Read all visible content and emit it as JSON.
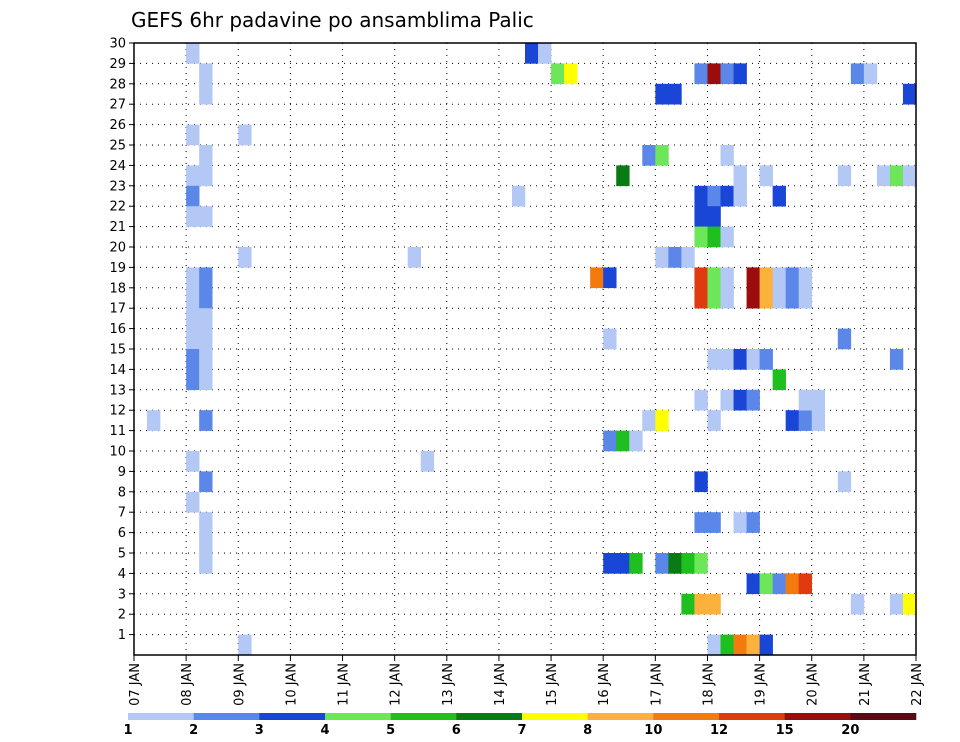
{
  "chart_data": {
    "type": "heatmap",
    "title": "GEFS 6hr padavine po ansamblima Palic",
    "xlabel": "",
    "ylabel": "",
    "x_ticks": [
      "07 JAN",
      "08 JAN",
      "09 JAN",
      "10 JAN",
      "11 JAN",
      "12 JAN",
      "13 JAN",
      "14 JAN",
      "15 JAN",
      "16 JAN",
      "17 JAN",
      "18 JAN",
      "19 JAN",
      "20 JAN",
      "21 JAN",
      "22 JAN"
    ],
    "y_ticks": [
      1,
      2,
      3,
      4,
      5,
      6,
      7,
      8,
      9,
      10,
      11,
      12,
      13,
      14,
      15,
      16,
      17,
      18,
      19,
      20,
      21,
      22,
      23,
      24,
      25,
      26,
      27,
      28,
      29,
      30
    ],
    "xlim": [
      0,
      60
    ],
    "ylim": [
      0,
      30
    ],
    "x_unit": "6-hour step from 07 JAN 00Z",
    "grid": true,
    "colorbar": {
      "labels": [
        "1",
        "2",
        "3",
        "4",
        "5",
        "6",
        "7",
        "8",
        "10",
        "12",
        "15",
        "20"
      ],
      "colors": [
        "#b3c8f5",
        "#5a87e8",
        "#1a46d8",
        "#6ee65a",
        "#1fbf1f",
        "#0a7a14",
        "#ffff00",
        "#fbb13b",
        "#f47a0e",
        "#e03a10",
        "#9b0d0d",
        "#5a0a14"
      ]
    },
    "cells": [
      {
        "x": 4,
        "y": 29,
        "level": 1
      },
      {
        "x": 5,
        "y": 27,
        "level": 1
      },
      {
        "x": 5,
        "y": 28,
        "level": 1
      },
      {
        "x": 4,
        "y": 25,
        "level": 1
      },
      {
        "x": 5,
        "y": 24,
        "level": 1
      },
      {
        "x": 4,
        "y": 23,
        "level": 1
      },
      {
        "x": 5,
        "y": 23,
        "level": 1
      },
      {
        "x": 4,
        "y": 22,
        "level": 2
      },
      {
        "x": 4,
        "y": 21,
        "level": 1
      },
      {
        "x": 5,
        "y": 21,
        "level": 1
      },
      {
        "x": 8,
        "y": 25,
        "level": 1
      },
      {
        "x": 4,
        "y": 18,
        "level": 1
      },
      {
        "x": 5,
        "y": 18,
        "level": 2
      },
      {
        "x": 4,
        "y": 17,
        "level": 1
      },
      {
        "x": 5,
        "y": 17,
        "level": 2
      },
      {
        "x": 4,
        "y": 16,
        "level": 1
      },
      {
        "x": 5,
        "y": 16,
        "level": 1
      },
      {
        "x": 4,
        "y": 15,
        "level": 1
      },
      {
        "x": 5,
        "y": 15,
        "level": 1
      },
      {
        "x": 4,
        "y": 14,
        "level": 2
      },
      {
        "x": 5,
        "y": 14,
        "level": 1
      },
      {
        "x": 4,
        "y": 13,
        "level": 2
      },
      {
        "x": 5,
        "y": 13,
        "level": 1
      },
      {
        "x": 8,
        "y": 19,
        "level": 1
      },
      {
        "x": 1,
        "y": 11,
        "level": 1
      },
      {
        "x": 5,
        "y": 11,
        "level": 2
      },
      {
        "x": 4,
        "y": 9,
        "level": 1
      },
      {
        "x": 5,
        "y": 8,
        "level": 2
      },
      {
        "x": 4,
        "y": 7,
        "level": 1
      },
      {
        "x": 5,
        "y": 6,
        "level": 1
      },
      {
        "x": 5,
        "y": 5,
        "level": 1
      },
      {
        "x": 5,
        "y": 4,
        "level": 1
      },
      {
        "x": 8,
        "y": 0,
        "level": 1
      },
      {
        "x": 21,
        "y": 19,
        "level": 1
      },
      {
        "x": 22,
        "y": 9,
        "level": 1
      },
      {
        "x": 29,
        "y": 22,
        "level": 1
      },
      {
        "x": 30,
        "y": 29,
        "level": 3
      },
      {
        "x": 31,
        "y": 29,
        "level": 1
      },
      {
        "x": 32,
        "y": 28,
        "level": 4
      },
      {
        "x": 33,
        "y": 28,
        "level": 7
      },
      {
        "x": 35,
        "y": 18,
        "level": 9
      },
      {
        "x": 36,
        "y": 18,
        "level": 3
      },
      {
        "x": 36,
        "y": 15,
        "level": 1
      },
      {
        "x": 36,
        "y": 10,
        "level": 2
      },
      {
        "x": 37,
        "y": 10,
        "level": 5
      },
      {
        "x": 38,
        "y": 10,
        "level": 1
      },
      {
        "x": 36,
        "y": 4,
        "level": 3
      },
      {
        "x": 37,
        "y": 4,
        "level": 3
      },
      {
        "x": 38,
        "y": 4,
        "level": 5
      },
      {
        "x": 37,
        "y": 23,
        "level": 6
      },
      {
        "x": 39,
        "y": 24,
        "level": 2
      },
      {
        "x": 40,
        "y": 24,
        "level": 4
      },
      {
        "x": 40,
        "y": 27,
        "level": 3
      },
      {
        "x": 41,
        "y": 27,
        "level": 3
      },
      {
        "x": 39,
        "y": 11,
        "level": 1
      },
      {
        "x": 40,
        "y": 11,
        "level": 7
      },
      {
        "x": 40,
        "y": 19,
        "level": 1
      },
      {
        "x": 41,
        "y": 19,
        "level": 2
      },
      {
        "x": 42,
        "y": 19,
        "level": 1
      },
      {
        "x": 40,
        "y": 4,
        "level": 2
      },
      {
        "x": 41,
        "y": 4,
        "level": 6
      },
      {
        "x": 42,
        "y": 4,
        "level": 5
      },
      {
        "x": 43,
        "y": 4,
        "level": 4
      },
      {
        "x": 42,
        "y": 2,
        "level": 5
      },
      {
        "x": 43,
        "y": 2,
        "level": 8
      },
      {
        "x": 44,
        "y": 2,
        "level": 8
      },
      {
        "x": 43,
        "y": 28,
        "level": 2
      },
      {
        "x": 44,
        "y": 28,
        "level": 11
      },
      {
        "x": 45,
        "y": 28,
        "level": 2
      },
      {
        "x": 46,
        "y": 28,
        "level": 3
      },
      {
        "x": 45,
        "y": 24,
        "level": 1
      },
      {
        "x": 46,
        "y": 23,
        "level": 1
      },
      {
        "x": 43,
        "y": 22,
        "level": 3
      },
      {
        "x": 44,
        "y": 22,
        "level": 2
      },
      {
        "x": 45,
        "y": 22,
        "level": 3
      },
      {
        "x": 46,
        "y": 22,
        "level": 1
      },
      {
        "x": 43,
        "y": 21,
        "level": 3
      },
      {
        "x": 44,
        "y": 21,
        "level": 3
      },
      {
        "x": 43,
        "y": 20,
        "level": 4
      },
      {
        "x": 44,
        "y": 20,
        "level": 5
      },
      {
        "x": 45,
        "y": 20,
        "level": 1
      },
      {
        "x": 43,
        "y": 18,
        "level": 10
      },
      {
        "x": 44,
        "y": 18,
        "level": 4
      },
      {
        "x": 45,
        "y": 18,
        "level": 1
      },
      {
        "x": 43,
        "y": 17,
        "level": 10
      },
      {
        "x": 44,
        "y": 17,
        "level": 4
      },
      {
        "x": 45,
        "y": 17,
        "level": 1
      },
      {
        "x": 44,
        "y": 14,
        "level": 1
      },
      {
        "x": 45,
        "y": 14,
        "level": 1
      },
      {
        "x": 46,
        "y": 14,
        "level": 3
      },
      {
        "x": 47,
        "y": 14,
        "level": 1
      },
      {
        "x": 48,
        "y": 14,
        "level": 2
      },
      {
        "x": 43,
        "y": 12,
        "level": 1
      },
      {
        "x": 45,
        "y": 12,
        "level": 1
      },
      {
        "x": 46,
        "y": 12,
        "level": 3
      },
      {
        "x": 47,
        "y": 12,
        "level": 2
      },
      {
        "x": 44,
        "y": 11,
        "level": 1
      },
      {
        "x": 43,
        "y": 8,
        "level": 3
      },
      {
        "x": 43,
        "y": 6,
        "level": 2
      },
      {
        "x": 44,
        "y": 6,
        "level": 2
      },
      {
        "x": 46,
        "y": 6,
        "level": 1
      },
      {
        "x": 47,
        "y": 6,
        "level": 2
      },
      {
        "x": 44,
        "y": 0,
        "level": 1
      },
      {
        "x": 45,
        "y": 0,
        "level": 5
      },
      {
        "x": 46,
        "y": 0,
        "level": 9
      },
      {
        "x": 47,
        "y": 0,
        "level": 8
      },
      {
        "x": 48,
        "y": 0,
        "level": 3
      },
      {
        "x": 48,
        "y": 23,
        "level": 1
      },
      {
        "x": 49,
        "y": 22,
        "level": 3
      },
      {
        "x": 47,
        "y": 18,
        "level": 11
      },
      {
        "x": 48,
        "y": 18,
        "level": 8
      },
      {
        "x": 49,
        "y": 18,
        "level": 1
      },
      {
        "x": 50,
        "y": 18,
        "level": 2
      },
      {
        "x": 51,
        "y": 18,
        "level": 1
      },
      {
        "x": 47,
        "y": 17,
        "level": 11
      },
      {
        "x": 48,
        "y": 17,
        "level": 8
      },
      {
        "x": 49,
        "y": 17,
        "level": 1
      },
      {
        "x": 50,
        "y": 17,
        "level": 2
      },
      {
        "x": 51,
        "y": 17,
        "level": 1
      },
      {
        "x": 49,
        "y": 13,
        "level": 5
      },
      {
        "x": 50,
        "y": 11,
        "level": 3
      },
      {
        "x": 51,
        "y": 11,
        "level": 2
      },
      {
        "x": 52,
        "y": 11,
        "level": 1
      },
      {
        "x": 51,
        "y": 12,
        "level": 1
      },
      {
        "x": 52,
        "y": 12,
        "level": 1
      },
      {
        "x": 47,
        "y": 3,
        "level": 3
      },
      {
        "x": 48,
        "y": 3,
        "level": 4
      },
      {
        "x": 49,
        "y": 3,
        "level": 2
      },
      {
        "x": 50,
        "y": 3,
        "level": 9
      },
      {
        "x": 51,
        "y": 3,
        "level": 10
      },
      {
        "x": 54,
        "y": 23,
        "level": 1
      },
      {
        "x": 54,
        "y": 15,
        "level": 2
      },
      {
        "x": 54,
        "y": 8,
        "level": 1
      },
      {
        "x": 55,
        "y": 28,
        "level": 2
      },
      {
        "x": 56,
        "y": 28,
        "level": 1
      },
      {
        "x": 55,
        "y": 2,
        "level": 1
      },
      {
        "x": 57,
        "y": 23,
        "level": 1
      },
      {
        "x": 58,
        "y": 23,
        "level": 4
      },
      {
        "x": 59,
        "y": 23,
        "level": 1
      },
      {
        "x": 58,
        "y": 14,
        "level": 2
      },
      {
        "x": 58,
        "y": 2,
        "level": 1
      },
      {
        "x": 59,
        "y": 2,
        "level": 7
      },
      {
        "x": 59,
        "y": 27,
        "level": 3
      }
    ]
  }
}
